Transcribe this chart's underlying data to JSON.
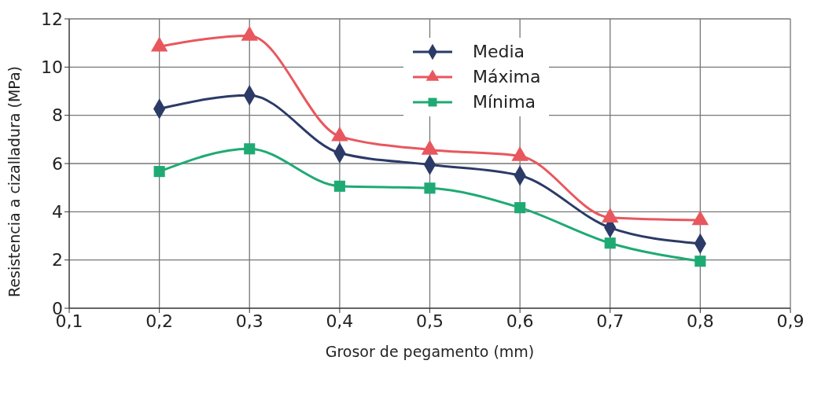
{
  "chart_data": {
    "type": "line",
    "xlabel": "Grosor de pegamento (mm)",
    "ylabel": "Resistencia a cizalladura (MPa)",
    "x": [
      0.2,
      0.3,
      0.4,
      0.5,
      0.6,
      0.7,
      0.8
    ],
    "series": [
      {
        "name": "Media",
        "color": "#2b3a67",
        "marker": "diamond",
        "values": [
          8.27,
          8.83,
          6.44,
          5.95,
          5.5,
          3.34,
          2.68
        ]
      },
      {
        "name": "Máxima",
        "color": "#e8575e",
        "marker": "triangle",
        "values": [
          10.85,
          11.3,
          7.13,
          6.57,
          6.31,
          3.76,
          3.65
        ]
      },
      {
        "name": "Mínima",
        "color": "#1faa74",
        "marker": "square",
        "values": [
          5.67,
          6.61,
          5.06,
          4.98,
          4.17,
          2.7,
          1.95
        ]
      }
    ],
    "xlim": [
      0.1,
      0.9
    ],
    "xticks": [
      {
        "value": 0.1,
        "label": "0,1"
      },
      {
        "value": 0.2,
        "label": "0,2"
      },
      {
        "value": 0.3,
        "label": "0,3"
      },
      {
        "value": 0.4,
        "label": "0,4"
      },
      {
        "value": 0.5,
        "label": "0,5"
      },
      {
        "value": 0.6,
        "label": "0,6"
      },
      {
        "value": 0.7,
        "label": "0,7"
      },
      {
        "value": 0.8,
        "label": "0,8"
      },
      {
        "value": 0.9,
        "label": "0,9"
      }
    ],
    "ylim": [
      0,
      12
    ],
    "yticks": [
      0,
      2,
      4,
      6,
      8,
      10,
      12
    ],
    "grid": true,
    "legend": "top"
  }
}
